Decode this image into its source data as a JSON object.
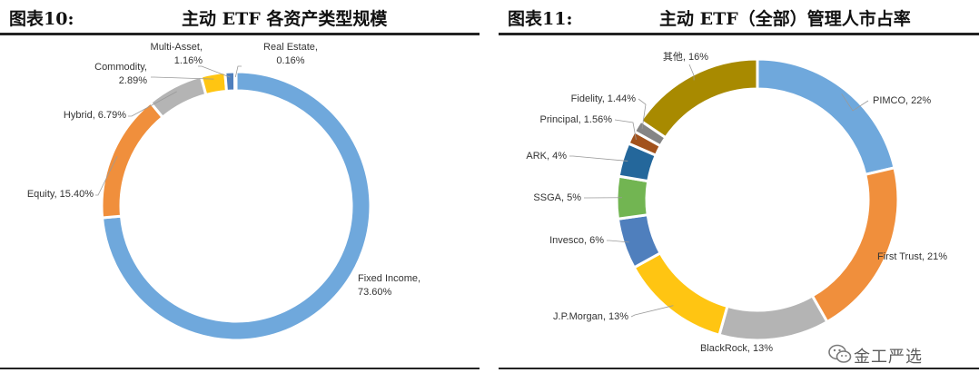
{
  "left_figure": {
    "figure_number": "图表10:",
    "title": "主动 ETF 各资产类型规模"
  },
  "right_figure": {
    "figure_number": "图表11:",
    "title": "主动 ETF（全部）管理人市占率"
  },
  "chart_data": [
    {
      "type": "pie",
      "style": "donut",
      "title": "主动 ETF 各资产类型规模",
      "slices": [
        {
          "name": "Fixed Income",
          "value": 73.6,
          "label": "73.60%",
          "color": "#6FA8DC"
        },
        {
          "name": "Equity",
          "value": 15.4,
          "label": "15.40%",
          "color": "#F08F3C"
        },
        {
          "name": "Hybrid",
          "value": 6.79,
          "label": "6.79%",
          "color": "#B4B4B4"
        },
        {
          "name": "Commodity",
          "value": 2.89,
          "label": "2.89%",
          "color": "#FFC512"
        },
        {
          "name": "Multi-Asset",
          "value": 1.16,
          "label": "1.16%",
          "color": "#4F7FBD"
        },
        {
          "name": "Real Estate",
          "value": 0.16,
          "label": "0.16%",
          "color": "#5A9A40"
        }
      ]
    },
    {
      "type": "pie",
      "style": "donut",
      "title": "主动 ETF（全部）管理人市占率",
      "slices": [
        {
          "name": "PIMCO",
          "value": 22,
          "label": "PIMCO, 22%",
          "color": "#6FA8DC"
        },
        {
          "name": "First Trust",
          "value": 21,
          "label": "First Trust, 21%",
          "color": "#F08F3C"
        },
        {
          "name": "BlackRock",
          "value": 13,
          "label": "BlackRock, 13%",
          "color": "#B4B4B4"
        },
        {
          "name": "J.P.Morgan",
          "value": 13,
          "label": "J.P.Morgan, 13%",
          "color": "#FFC512"
        },
        {
          "name": "Invesco",
          "value": 6,
          "label": "Invesco, 6%",
          "color": "#4F7FBD"
        },
        {
          "name": "SSGA",
          "value": 5,
          "label": "SSGA, 5%",
          "color": "#72B552"
        },
        {
          "name": "ARK",
          "value": 4,
          "label": "ARK, 4%",
          "color": "#24679B"
        },
        {
          "name": "Principal",
          "value": 1.56,
          "label": "Principal, 1.56%",
          "color": "#A2521C"
        },
        {
          "name": "Fidelity",
          "value": 1.44,
          "label": "Fidelity, 1.44%",
          "color": "#858585"
        },
        {
          "name": "其他",
          "value": 16,
          "label": "其他, 16%",
          "color": "#A88A00"
        }
      ]
    }
  ],
  "watermark": {
    "text": "金工严选"
  }
}
